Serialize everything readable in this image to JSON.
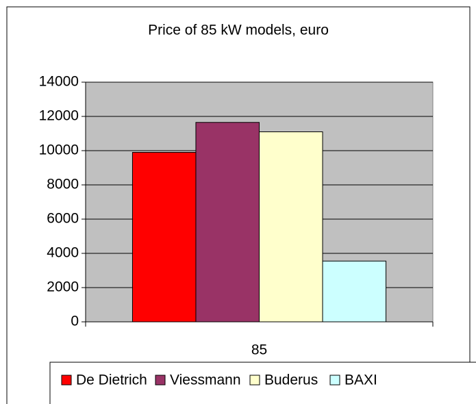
{
  "chart_data": {
    "type": "bar",
    "title": "Price of 85 kW models, euro",
    "categories": [
      "85"
    ],
    "series": [
      {
        "name": "De Dietrich",
        "color": "#ff0000",
        "values": [
          9900
        ]
      },
      {
        "name": "Viessmann",
        "color": "#993366",
        "values": [
          11650
        ]
      },
      {
        "name": "Buderus",
        "color": "#ffffcc",
        "values": [
          11100
        ]
      },
      {
        "name": "BAXI",
        "color": "#ccffff",
        "values": [
          3550
        ]
      }
    ],
    "ylim": [
      0,
      14000
    ],
    "yticks": [
      0,
      2000,
      4000,
      6000,
      8000,
      10000,
      12000,
      14000
    ],
    "grid": true,
    "legend": "bottom",
    "plot_background": "#c0c0c0"
  }
}
